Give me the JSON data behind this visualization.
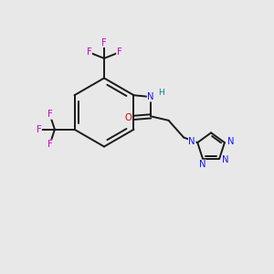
{
  "bg_color": "#e8e8e8",
  "bond_color": "#1a1a1a",
  "N_color": "#1414ff",
  "O_color": "#cc0000",
  "F_color": "#cc00cc",
  "NH_color": "#008888",
  "figsize": [
    3.0,
    3.0
  ],
  "dpi": 100,
  "xlim": [
    0,
    10
  ],
  "ylim": [
    0,
    10
  ],
  "lw": 1.4,
  "fs": 7.2
}
